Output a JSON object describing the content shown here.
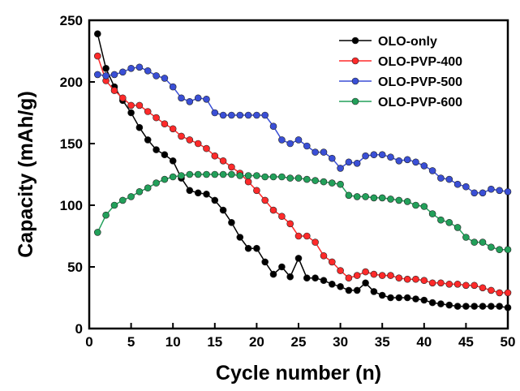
{
  "chart_data": {
    "type": "line",
    "title": "",
    "xlabel": "Cycle number (n)",
    "ylabel": "Capacity (mAh/g)",
    "xlim": [
      0,
      50
    ],
    "ylim": [
      0,
      250
    ],
    "xticks": [
      0,
      5,
      10,
      15,
      20,
      25,
      30,
      35,
      40,
      45,
      50
    ],
    "yticks": [
      0,
      50,
      100,
      150,
      200,
      250
    ],
    "grid": false,
    "legend_position": "top-right",
    "series": [
      {
        "name": "OLO-only",
        "color": "#000000",
        "x": [
          1,
          2,
          3,
          4,
          5,
          6,
          7,
          8,
          9,
          10,
          11,
          12,
          13,
          14,
          15,
          16,
          17,
          18,
          19,
          20,
          21,
          22,
          23,
          24,
          25,
          26,
          27,
          28,
          29,
          30,
          31,
          32,
          33,
          34,
          35,
          36,
          37,
          38,
          39,
          40,
          41,
          42,
          43,
          44,
          45,
          46,
          47,
          48,
          49,
          50
        ],
        "values": [
          239,
          211,
          196,
          185,
          175,
          163,
          153,
          145,
          141,
          136,
          122,
          112,
          110,
          109,
          104,
          96,
          86,
          74,
          65,
          65,
          54,
          44,
          50,
          42,
          57,
          41,
          41,
          39,
          36,
          34,
          31,
          31,
          37,
          30,
          27,
          25,
          25,
          25,
          24,
          23,
          21,
          20,
          19,
          18,
          18,
          18,
          18,
          18,
          18,
          17
        ]
      },
      {
        "name": "OLO-PVP-400",
        "color": "#ff2a2a",
        "x": [
          1,
          2,
          3,
          4,
          5,
          6,
          7,
          8,
          9,
          10,
          11,
          12,
          13,
          14,
          15,
          16,
          17,
          18,
          19,
          20,
          21,
          22,
          23,
          24,
          25,
          26,
          27,
          28,
          29,
          30,
          31,
          32,
          33,
          34,
          35,
          36,
          37,
          38,
          39,
          40,
          41,
          42,
          43,
          44,
          45,
          46,
          47,
          48,
          49,
          50
        ],
        "values": [
          221,
          201,
          193,
          187,
          181,
          181,
          176,
          171,
          166,
          162,
          156,
          153,
          150,
          146,
          140,
          136,
          131,
          126,
          119,
          112,
          104,
          96,
          91,
          85,
          75,
          75,
          70,
          59,
          54,
          47,
          41,
          43,
          46,
          44,
          43,
          43,
          41,
          40,
          40,
          39,
          37,
          37,
          36,
          36,
          35,
          35,
          33,
          31,
          29,
          29
        ]
      },
      {
        "name": "OLO-PVP-500",
        "color": "#3a4fd6",
        "x": [
          1,
          2,
          3,
          4,
          5,
          6,
          7,
          8,
          9,
          10,
          11,
          12,
          13,
          14,
          15,
          16,
          17,
          18,
          19,
          20,
          21,
          22,
          23,
          24,
          25,
          26,
          27,
          28,
          29,
          30,
          31,
          32,
          33,
          34,
          35,
          36,
          37,
          38,
          39,
          40,
          41,
          42,
          43,
          44,
          45,
          46,
          47,
          48,
          49,
          50
        ],
        "values": [
          206,
          205,
          206,
          208,
          211,
          212,
          209,
          205,
          203,
          196,
          187,
          184,
          187,
          186,
          175,
          173,
          173,
          173,
          173,
          173,
          173,
          164,
          153,
          150,
          153,
          148,
          143,
          143,
          138,
          130,
          135,
          134,
          140,
          141,
          141,
          139,
          136,
          137,
          135,
          132,
          128,
          122,
          121,
          117,
          115,
          110,
          110,
          113,
          112,
          111
        ]
      },
      {
        "name": "OLO-PVP-600",
        "color": "#22a05a",
        "x": [
          1,
          2,
          3,
          4,
          5,
          6,
          7,
          8,
          9,
          10,
          11,
          12,
          13,
          14,
          15,
          16,
          17,
          18,
          19,
          20,
          21,
          22,
          23,
          24,
          25,
          26,
          27,
          28,
          29,
          30,
          31,
          32,
          33,
          34,
          35,
          36,
          37,
          38,
          39,
          40,
          41,
          42,
          43,
          44,
          45,
          46,
          47,
          48,
          49,
          50
        ],
        "values": [
          78,
          92,
          100,
          104,
          107,
          111,
          114,
          118,
          121,
          123,
          124,
          125,
          125,
          125,
          125,
          125,
          125,
          124,
          124,
          124,
          123,
          123,
          123,
          122,
          122,
          121,
          120,
          119,
          118,
          117,
          108,
          107,
          107,
          106,
          106,
          105,
          104,
          103,
          100,
          99,
          93,
          88,
          86,
          82,
          74,
          70,
          70,
          66,
          64,
          64
        ]
      }
    ]
  }
}
